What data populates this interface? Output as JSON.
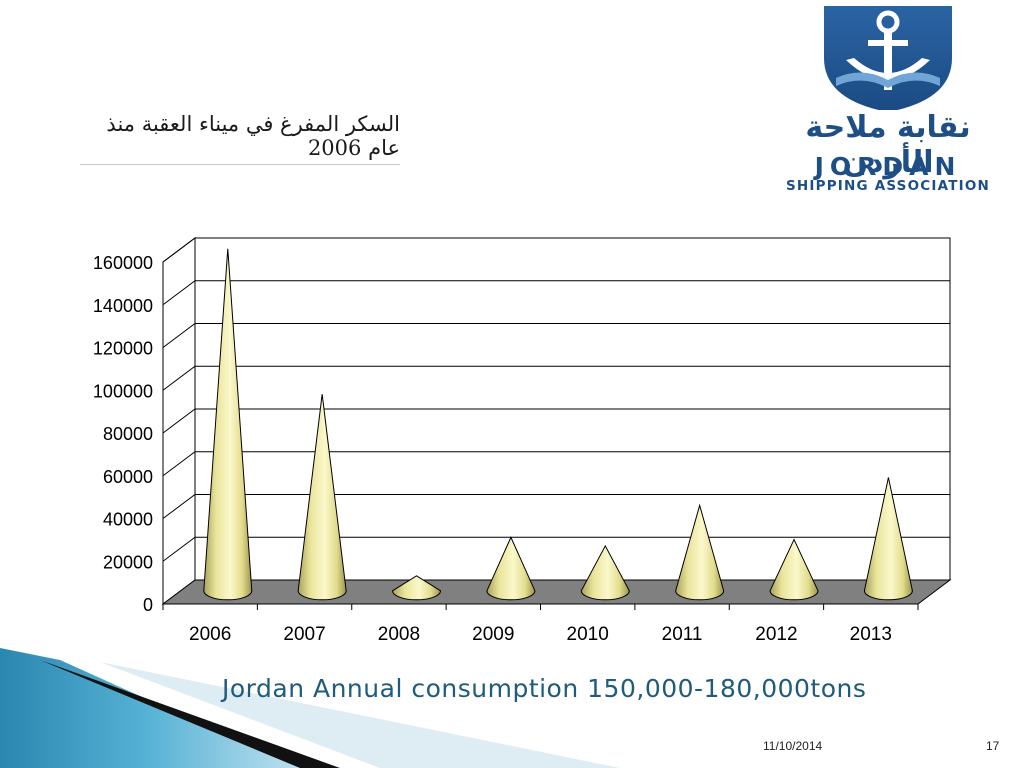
{
  "slide": {
    "title_ar": "السكر المفرغ في ميناء العقبة منذ عام 2006",
    "caption": "Jordan Annual consumption 150,000-180,000tons",
    "date": "11/10/2014",
    "page_number": "17"
  },
  "logo": {
    "text_ar": "نقابة ملاحة الأردن",
    "text_en_1": "JORDAN",
    "text_en_2": "SHIPPING ASSOCIATION",
    "icon": "anchor-icon",
    "colors": {
      "primary": "#1d4f86",
      "light": "#6fa6d6"
    }
  },
  "chart_data": {
    "type": "bar",
    "style": "3d-cone",
    "categories": [
      "2006",
      "2007",
      "2008",
      "2009",
      "2010",
      "2011",
      "2012",
      "2013"
    ],
    "values": [
      160000,
      92000,
      7000,
      25000,
      21000,
      40000,
      24000,
      53000
    ],
    "ylim": [
      0,
      160000
    ],
    "yticks": [
      0,
      20000,
      40000,
      60000,
      80000,
      100000,
      120000,
      140000,
      160000
    ],
    "grid": true,
    "legend": "none",
    "colors": {
      "cone": "#e9e49a",
      "floor": "#808080"
    }
  }
}
